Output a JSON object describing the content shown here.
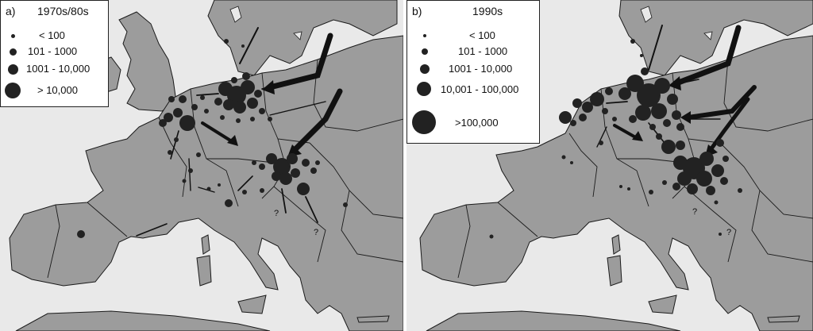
{
  "panels": [
    {
      "letter": "a)",
      "period": "1970s/80s",
      "legend": [
        "< 100",
        "101 - 1000",
        "1001 - 10,000",
        "> 10,000"
      ]
    },
    {
      "letter": "b)",
      "period": "1990s",
      "legend": [
        "< 100",
        "101 - 1000",
        "1001 - 10,000",
        "10,001 - 100,000",
        ">100,000"
      ]
    }
  ],
  "question_mark": "?",
  "colors": {
    "sea": "#e9e9e9",
    "land": "#9c9c9c",
    "border": "#1a1a1a",
    "symbol": "#222222"
  }
}
